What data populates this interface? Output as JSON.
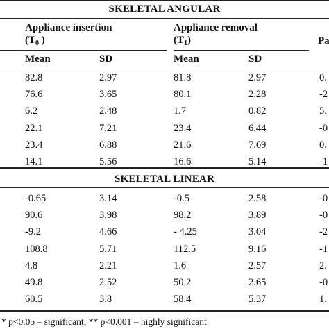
{
  "angular": {
    "title": "SKELETAL ANGULAR",
    "header": {
      "insertion": "Appliance insertion",
      "t0_open": "(T",
      "t0_sub": "0",
      "t0_close": " )",
      "removal": "Appliance removal",
      "t1_open": "(T",
      "t1_sub": "1",
      "t1_close": ")",
      "pa": "Pa",
      "mean1": "Mean",
      "sd1": "SD",
      "mean2": "Mean",
      "sd2": "SD"
    },
    "rows": [
      {
        "m1": "82.8",
        "s1": "2.97",
        "m2": "81.8",
        "s2": "2.97",
        "p": "0."
      },
      {
        "m1": "76.6",
        "s1": "3.65",
        "m2": "80.1",
        "s2": "2.28",
        "p": "-2"
      },
      {
        "m1": "6.2",
        "s1": "2.48",
        "m2": "1.7",
        "s2": "0.82",
        "p": "5."
      },
      {
        "m1": "22.1",
        "s1": "7.21",
        "m2": "23.4",
        "s2": "6.44",
        "p": "-0"
      },
      {
        "m1": "23.4",
        "s1": "6.88",
        "m2": "21.6",
        "s2": "7.69",
        "p": "0."
      },
      {
        "m1": "14.1",
        "s1": "5.56",
        "m2": "16.6",
        "s2": "5.14",
        "p": "-1"
      }
    ]
  },
  "linear": {
    "title": "SKELETAL LINEAR",
    "rows": [
      {
        "m1": "-0.65",
        "s1": "3.14",
        "m2": "-0.5",
        "s2": "2.58",
        "p": "-0"
      },
      {
        "m1": "90.6",
        "s1": "3.98",
        "m2": "98.2",
        "s2": "3.89",
        "p": "-0"
      },
      {
        "m1": "-9.2",
        "s1": "4.66",
        "m2": "- 4.25",
        "s2": "3.04",
        "p": "-2"
      },
      {
        "m1": "108.8",
        "s1": "5.71",
        "m2": "112.5",
        "s2": "9.16",
        "p": "-1"
      },
      {
        "m1": "4.8",
        "s1": "2.21",
        "m2": "1.6",
        "s2": "2.57",
        "p": "2."
      },
      {
        "m1": "49.8",
        "s1": "2.52",
        "m2": "50.2",
        "s2": "2.65",
        "p": "-0"
      },
      {
        "m1": "60.5",
        "s1": "3.8",
        "m2": "58.4",
        "s2": "5.37",
        "p": "1."
      }
    ]
  },
  "footnote": "* p<0.05 – significant; ** p<0.001 – highly significant"
}
